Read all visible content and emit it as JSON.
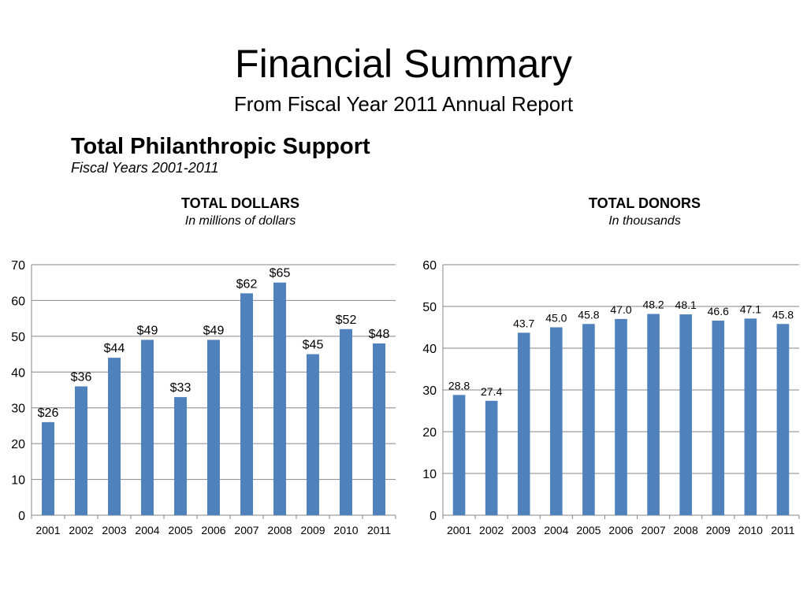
{
  "page": {
    "title": "Financial Summary",
    "subtitle": "From Fiscal Year 2011 Annual Report"
  },
  "section": {
    "title": "Total Philanthropic Support",
    "subtitle": "Fiscal Years 2001-2011"
  },
  "colors": {
    "bar": "#4f81bd",
    "grid": "#868686",
    "axis": "#868686"
  },
  "chart_data": [
    {
      "type": "bar",
      "title": "TOTAL DOLLARS",
      "subtitle": "In millions of dollars",
      "categories": [
        "2001",
        "2002",
        "2003",
        "2004",
        "2005",
        "2006",
        "2007",
        "2008",
        "2009",
        "2010",
        "2011"
      ],
      "values": [
        26,
        36,
        44,
        49,
        33,
        49,
        62,
        65,
        45,
        52,
        48
      ],
      "data_labels": [
        "$26",
        "$36",
        "$44",
        "$49",
        "$33",
        "$49",
        "$62",
        "$65",
        "$45",
        "$52",
        "$48"
      ],
      "ylim": [
        0,
        70
      ],
      "yticks": [
        0,
        10,
        20,
        30,
        40,
        50,
        60,
        70
      ],
      "xlabel": "",
      "ylabel": "",
      "grid": true,
      "legend": "none"
    },
    {
      "type": "bar",
      "title": "TOTAL DONORS",
      "subtitle": "In thousands",
      "categories": [
        "2001",
        "2002",
        "2003",
        "2004",
        "2005",
        "2006",
        "2007",
        "2008",
        "2009",
        "2010",
        "2011"
      ],
      "values": [
        28.8,
        27.4,
        43.7,
        45.0,
        45.8,
        47.0,
        48.2,
        48.1,
        46.6,
        47.1,
        45.8
      ],
      "data_labels": [
        "28.8",
        "27.4",
        "43.7",
        "45.0",
        "45.8",
        "47.0",
        "48.2",
        "48.1",
        "46.6",
        "47.1",
        "45.8"
      ],
      "ylim": [
        0,
        60
      ],
      "yticks": [
        0,
        10,
        20,
        30,
        40,
        50,
        60
      ],
      "xlabel": "",
      "ylabel": "",
      "grid": true,
      "legend": "none"
    }
  ]
}
